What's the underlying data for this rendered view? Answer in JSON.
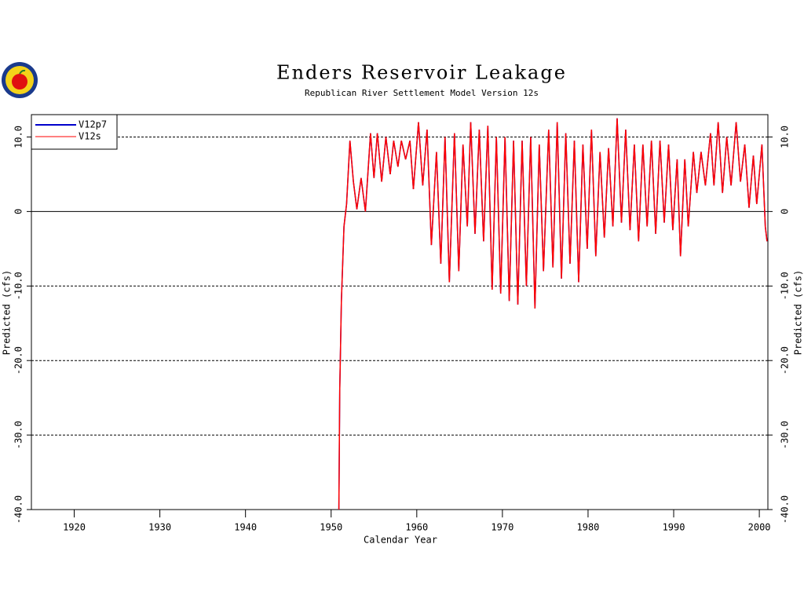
{
  "chart_data": {
    "type": "line",
    "title": "Enders Reservoir Leakage",
    "subtitle": "Republican River Settlement Model Version 12s",
    "x_label": "Calendar Year",
    "y_label": "Predicted (cfs)",
    "y2_label": "Predicted (cfs)",
    "xlim": [
      1915,
      2001
    ],
    "ylim": [
      -40,
      13
    ],
    "xticks": [
      1920,
      1930,
      1940,
      1950,
      1960,
      1970,
      1980,
      1990,
      2000
    ],
    "yticks": [
      {
        "value": -40,
        "label": "-40.0"
      },
      {
        "value": -30,
        "label": "-30.0"
      },
      {
        "value": -20,
        "label": "-20.0"
      },
      {
        "value": -10,
        "label": "-10.0"
      },
      0,
      {
        "value": 10,
        "label": "10.0"
      }
    ],
    "grid": true,
    "legend": "upper left",
    "x": [
      1950.9,
      1951.0,
      1951.2,
      1951.5,
      1951.8,
      1952.2,
      1952.6,
      1953.0,
      1953.5,
      1954.0,
      1954.6,
      1955.0,
      1955.4,
      1955.9,
      1956.4,
      1956.9,
      1957.3,
      1957.8,
      1958.2,
      1958.7,
      1959.2,
      1959.6,
      1960.2,
      1960.7,
      1961.2,
      1961.7,
      1962.3,
      1962.8,
      1963.3,
      1963.8,
      1964.4,
      1964.9,
      1965.4,
      1965.9,
      1966.3,
      1966.8,
      1967.3,
      1967.8,
      1968.3,
      1968.8,
      1969.3,
      1969.8,
      1970.3,
      1970.8,
      1971.3,
      1971.8,
      1972.3,
      1972.8,
      1973.3,
      1973.8,
      1974.3,
      1974.8,
      1975.4,
      1975.9,
      1976.4,
      1976.9,
      1977.4,
      1977.9,
      1978.4,
      1978.9,
      1979.4,
      1979.9,
      1980.4,
      1980.9,
      1981.4,
      1981.9,
      1982.4,
      1982.9,
      1983.4,
      1983.9,
      1984.4,
      1984.9,
      1985.4,
      1985.9,
      1986.4,
      1986.9,
      1987.4,
      1987.9,
      1988.4,
      1988.9,
      1989.4,
      1989.9,
      1990.4,
      1990.8,
      1991.3,
      1991.7,
      1992.3,
      1992.7,
      1993.2,
      1993.7,
      1994.3,
      1994.7,
      1995.2,
      1995.7,
      1996.2,
      1996.7,
      1997.3,
      1997.8,
      1998.3,
      1998.8,
      1999.3,
      1999.7,
      2000.3,
      2000.7,
      2000.9
    ],
    "series": [
      {
        "name": "V12p7",
        "color": "#0000cc",
        "values": [
          -40,
          -24,
          -12,
          -2,
          1,
          9.5,
          4,
          0.3,
          4.5,
          0,
          10.5,
          4.5,
          10.5,
          4,
          10,
          5,
          9.5,
          6,
          9.5,
          7,
          9.5,
          3,
          12,
          3.5,
          11,
          -4.5,
          8,
          -7,
          10,
          -9.5,
          10.5,
          -8,
          9,
          -2,
          12,
          -3,
          11,
          -4,
          11.5,
          -10.5,
          10,
          -11,
          10,
          -12,
          9.5,
          -12.5,
          9.5,
          -10,
          10,
          -13,
          9,
          -8,
          11,
          -7.5,
          12,
          -9,
          10.5,
          -7,
          9.5,
          -9.5,
          9,
          -5,
          11,
          -6,
          8,
          -3.5,
          8.5,
          -2,
          12.5,
          -1.5,
          11,
          -2.5,
          9,
          -4,
          9,
          -2,
          9.5,
          -3,
          9.5,
          -1.5,
          9,
          -2.5,
          7,
          -6,
          7,
          -2,
          8,
          2.5,
          8,
          3.5,
          10.5,
          3.5,
          12,
          2.5,
          10,
          3.5,
          12,
          4,
          9,
          0.5,
          7.5,
          1,
          9,
          -2,
          -4
        ]
      },
      {
        "name": "V12s",
        "color": "#ff0000",
        "values": [
          -40,
          -24,
          -12,
          -2,
          1,
          9.5,
          4,
          0.3,
          4.5,
          0,
          10.5,
          4.5,
          10.5,
          4,
          10,
          5,
          9.5,
          6,
          9.5,
          7,
          9.5,
          3,
          12,
          3.5,
          11,
          -4.5,
          8,
          -7,
          10,
          -9.5,
          10.5,
          -8,
          9,
          -2,
          12,
          -3,
          11,
          -4,
          11.5,
          -10.5,
          10,
          -11,
          10,
          -12,
          9.5,
          -12.5,
          9.5,
          -10,
          10,
          -13,
          9,
          -8,
          11,
          -7.5,
          12,
          -9,
          10.5,
          -7,
          9.5,
          -9.5,
          9,
          -5,
          11,
          -6,
          8,
          -3.5,
          8.5,
          -2,
          12.5,
          -1.5,
          11,
          -2.5,
          9,
          -4,
          9,
          -2,
          9.5,
          -3,
          9.5,
          -1.5,
          9,
          -2.5,
          7,
          -6,
          7,
          -2,
          8,
          2.5,
          8,
          3.5,
          10.5,
          3.5,
          12,
          2.5,
          10,
          3.5,
          12,
          4,
          9,
          0.5,
          7.5,
          1,
          9,
          -2,
          -4
        ]
      }
    ]
  }
}
